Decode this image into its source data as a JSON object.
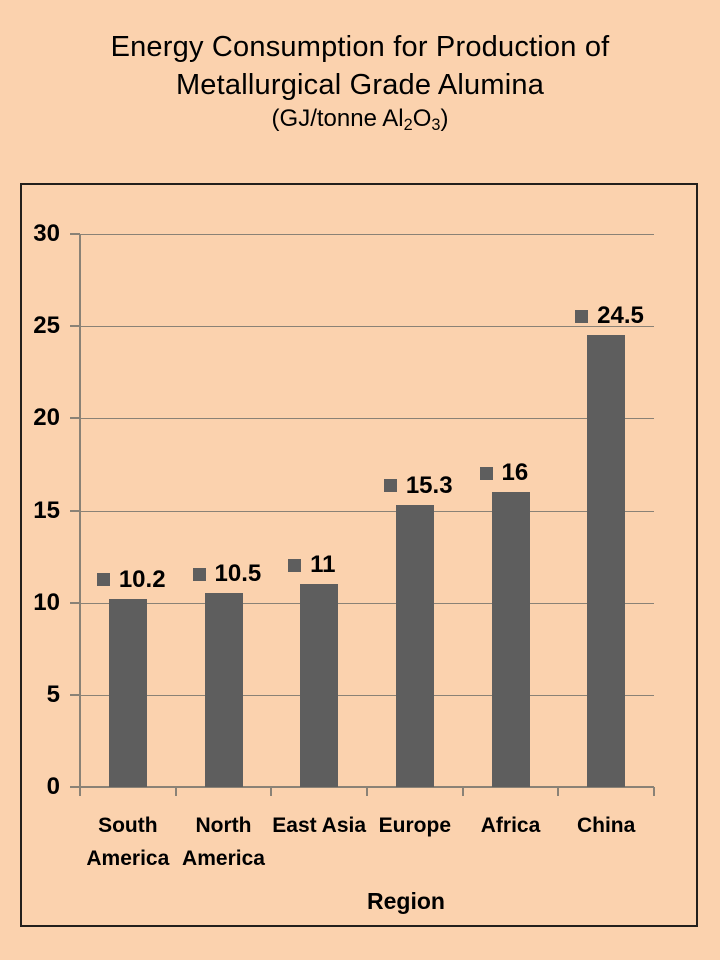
{
  "title": {
    "line1": "Energy Consumption for Production of",
    "line2": "Metallurgical Grade Alumina",
    "unit": {
      "p1": "(GJ/tonne Al",
      "sub1": "2",
      "p2": "O",
      "sub2": "3",
      "p3": ")"
    }
  },
  "chart_data": {
    "type": "bar",
    "title": "Energy Consumption for Production of Metallurgical Grade Alumina (GJ/tonne Al2O3)",
    "categories": [
      "South America",
      "North America",
      "East Asia",
      "Europe",
      "Africa",
      "China"
    ],
    "values": [
      10.2,
      10.5,
      11,
      15.3,
      16,
      24.5
    ],
    "data_labels": [
      "10.2",
      "10.5",
      "11",
      "15.3",
      "16",
      "24.5"
    ],
    "xlabel": "Region",
    "ylabel": "",
    "ylim": [
      0,
      30
    ],
    "yticks": [
      0,
      5,
      10,
      15,
      20,
      25,
      30
    ],
    "grid": true,
    "legend_position": "none",
    "colors": {
      "bar": "#5e5e5e",
      "background": "#fbd2ae",
      "gridline": "#8a8276",
      "axis": "#8a8276",
      "border": "#231f1c",
      "text": "#000000"
    }
  }
}
